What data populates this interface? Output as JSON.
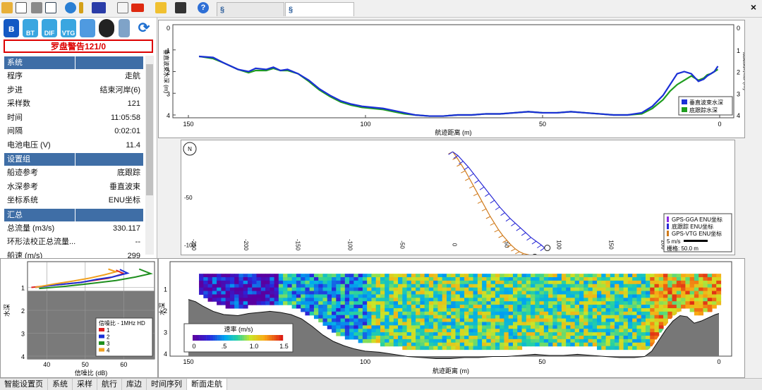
{
  "toolbar": {
    "icons": [
      "folder-open-icon",
      "window-icon",
      "tools-icon",
      "layout-icon",
      "globe-icon",
      "pin-icon",
      "meter-icon",
      "notepad-icon",
      "flag-icon",
      "hand-icon",
      "camera-icon",
      "help-icon"
    ],
    "tabs": [
      {
        "label": "20190618110052",
        "active": false
      },
      {
        "label": "20190618110402",
        "active": true
      }
    ],
    "close_label": "×"
  },
  "left_panel": {
    "icons": [
      "bluetooth-icon",
      "BT",
      "DIF",
      "VTG",
      "ship-icon",
      "reel-icon",
      "battery-icon",
      "refresh-icon"
    ],
    "warning": "罗盘警告121/0",
    "sections": [
      {
        "title": "系统",
        "rows": [
          {
            "label": "程序",
            "value": "走航"
          },
          {
            "label": "步进",
            "value": "结束河岸(6)"
          },
          {
            "label": "采样数",
            "value": "121"
          },
          {
            "label": "时间",
            "value": "11:05:58"
          },
          {
            "label": "间隔",
            "value": "0:02:01"
          },
          {
            "label": "电池电压 (V)",
            "value": "11.4"
          }
        ]
      },
      {
        "title": "设置组",
        "rows": [
          {
            "label": "船迹参考",
            "value": "底跟踪"
          },
          {
            "label": "水深参考",
            "value": "垂直波束"
          },
          {
            "label": "坐标系统",
            "value": "ENU坐标"
          }
        ]
      },
      {
        "title": "汇总",
        "rows": [
          {
            "label": "总流量 (m3/s)",
            "value": "330.117"
          },
          {
            "label": "环形法校正总流量...",
            "value": "--"
          },
          {
            "label": "船速 (m/s)",
            "value": "299"
          }
        ]
      }
    ]
  },
  "bottom_tabs": [
    {
      "label": "智能设置页",
      "active": false
    },
    {
      "label": "系统",
      "active": false
    },
    {
      "label": "采样",
      "active": false
    },
    {
      "label": "航行",
      "active": false
    },
    {
      "label": "库边",
      "active": false
    },
    {
      "label": "时间序列",
      "active": false
    },
    {
      "label": "断面走航",
      "active": true
    }
  ],
  "chart_data": [
    {
      "type": "line",
      "title": "",
      "xlabel": "航迹距离 (m)",
      "ylabel": "垂直波束水深 (m)",
      "ylabel_right": "底跟踪水深 (m)",
      "xlim": [
        150,
        0
      ],
      "ylim": [
        4,
        0
      ],
      "x_ticks": [
        150,
        100,
        50,
        0
      ],
      "y_ticks": [
        1,
        2,
        3,
        4
      ],
      "legend": {
        "position": "bottom-right"
      },
      "series": [
        {
          "name": "垂直波束水深",
          "color": "#1a2fd6",
          "x": [
            147,
            143,
            140,
            136,
            133,
            131,
            128,
            126,
            124,
            122,
            119,
            116,
            113,
            110,
            107,
            104,
            101,
            98,
            95,
            92,
            89,
            86,
            82,
            78,
            74,
            70,
            66,
            62,
            58,
            54,
            50,
            46,
            42,
            38,
            34,
            30,
            26,
            22,
            19,
            16,
            14,
            12,
            10,
            8,
            6,
            4.5,
            3.5,
            2.5,
            1.5,
            0.5
          ],
          "y": [
            1.3,
            1.35,
            1.6,
            1.9,
            2.0,
            1.85,
            1.9,
            1.8,
            1.95,
            1.9,
            2.1,
            2.4,
            2.8,
            3.1,
            3.35,
            3.5,
            3.6,
            3.65,
            3.7,
            3.8,
            3.9,
            4.0,
            4.05,
            4.05,
            4.0,
            4.0,
            3.95,
            3.95,
            3.9,
            3.85,
            3.9,
            3.9,
            3.85,
            3.9,
            3.95,
            4.0,
            4.0,
            3.9,
            3.6,
            3.1,
            2.6,
            2.1,
            2.0,
            2.1,
            2.45,
            2.35,
            2.2,
            2.1,
            2.0,
            1.75
          ]
        },
        {
          "name": "底跟踪水深",
          "color": "#1f9d1f",
          "x": [
            147,
            143,
            140,
            136,
            133,
            131,
            128,
            126,
            124,
            122,
            119,
            116,
            113,
            110,
            107,
            104,
            101,
            98,
            95,
            92,
            89,
            86,
            82,
            78,
            74,
            70,
            66,
            62,
            58,
            54,
            50,
            46,
            42,
            38,
            34,
            30,
            26,
            22,
            19,
            16,
            14,
            12,
            10,
            8,
            6,
            4.5,
            3.5,
            2.5,
            1.5,
            0.5
          ],
          "y": [
            1.3,
            1.4,
            1.6,
            1.9,
            2.05,
            1.95,
            1.95,
            1.85,
            1.95,
            1.95,
            2.1,
            2.45,
            2.85,
            3.15,
            3.4,
            3.55,
            3.65,
            3.7,
            3.75,
            3.85,
            3.95,
            4.0,
            4.05,
            4.05,
            4.0,
            4.0,
            3.95,
            3.95,
            3.9,
            3.85,
            3.9,
            3.9,
            3.85,
            3.9,
            3.95,
            4.0,
            4.0,
            3.95,
            3.7,
            3.3,
            2.9,
            2.6,
            2.4,
            2.2,
            2.4,
            2.3,
            2.15,
            2.1,
            2.0,
            1.9
          ]
        }
      ]
    },
    {
      "type": "scatter",
      "title": "",
      "xlim": [
        -260,
        270
      ],
      "ylim": [
        -110,
        10
      ],
      "x_ticks": [
        -250,
        -200,
        -150,
        -100,
        -50,
        0,
        50,
        100,
        150,
        200,
        250
      ],
      "y_ticks": [
        -50,
        -100
      ],
      "legend": {
        "position": "bottom-right"
      },
      "compass_label": "N",
      "scale_label": "5 m/s",
      "grid_label": "栅格: 50.0 m",
      "series": [
        {
          "name": "GPS-GGA ENU坐标",
          "color": "#8a2be2"
        },
        {
          "name": "底跟踪 ENU坐标",
          "color": "#2a2ad6",
          "x": [
            0,
            5,
            10,
            15,
            20,
            25,
            30,
            35,
            40,
            45,
            50,
            55,
            60,
            65,
            70,
            75,
            80,
            85,
            88
          ],
          "y": [
            -2,
            -6,
            -12,
            -18,
            -25,
            -32,
            -39,
            -46,
            -53,
            -60,
            -66,
            -72,
            -77,
            -82,
            -87,
            -92,
            -96,
            -100,
            -103
          ]
        },
        {
          "name": "GPS-VTG ENU坐标",
          "color": "#d07a1a",
          "x": [
            0,
            4,
            8,
            12,
            16,
            20,
            24,
            28,
            32,
            36,
            40,
            44,
            48,
            52,
            56,
            60,
            64,
            68,
            72,
            76,
            80
          ],
          "y": [
            -2,
            -8,
            -15,
            -22,
            -30,
            -38,
            -46,
            -54,
            -62,
            -70,
            -77,
            -84,
            -90,
            -95,
            -100,
            -104,
            -107,
            -109,
            -110,
            -111,
            -111
          ]
        }
      ]
    },
    {
      "type": "heatmap",
      "title": "",
      "xlabel": "航迹距离 (m)",
      "ylabel": "水深",
      "xlim": [
        150,
        0
      ],
      "ylim": [
        4,
        0
      ],
      "x_ticks": [
        150,
        100,
        50,
        0
      ],
      "y_ticks": [
        1,
        2,
        3,
        4
      ],
      "colorbar": {
        "label": "速率 (m/s)",
        "min": 0,
        "max": 1.5,
        "ticks": [
          "0",
          ".5",
          "1.0",
          "1.5"
        ]
      },
      "bottom_profile": {
        "x": [
          150,
          148,
          146,
          143,
          140,
          136,
          133,
          130,
          127,
          124,
          121,
          118,
          115,
          112,
          109,
          106,
          103,
          100,
          96,
          92,
          88,
          84,
          80,
          76,
          72,
          68,
          64,
          60,
          56,
          52,
          48,
          44,
          40,
          36,
          32,
          28,
          24,
          21,
          19,
          17,
          15,
          13,
          11,
          9,
          7,
          5,
          3,
          1,
          0
        ],
        "y": [
          1.3,
          1.4,
          1.6,
          1.85,
          2.0,
          2.05,
          1.95,
          1.9,
          1.85,
          1.9,
          2.0,
          2.2,
          2.55,
          2.95,
          3.25,
          3.45,
          3.6,
          3.7,
          3.75,
          3.85,
          3.95,
          4.0,
          4.05,
          4.05,
          4.0,
          4.0,
          3.95,
          3.95,
          3.9,
          3.85,
          3.9,
          3.9,
          3.85,
          3.9,
          3.95,
          4.0,
          4.0,
          3.95,
          3.7,
          3.2,
          2.7,
          2.3,
          2.05,
          2.1,
          2.4,
          2.3,
          2.15,
          2.0,
          1.95
        ]
      }
    },
    {
      "type": "line",
      "title": "",
      "xlabel": "信噪比 (dB)",
      "ylabel": "水深",
      "xlim": [
        35,
        68
      ],
      "ylim": [
        4,
        0
      ],
      "x_ticks": [
        40,
        50,
        60
      ],
      "y_ticks": [
        1,
        2,
        3,
        4
      ],
      "legend": {
        "title": "信噪比 - 1MHz HD",
        "position": "bottom-right"
      },
      "series": [
        {
          "name": "1",
          "color": "#e02020",
          "x": [
            36,
            42,
            48,
            52,
            56,
            60,
            58
          ],
          "y": [
            1.0,
            0.9,
            0.8,
            0.7,
            0.6,
            0.4,
            0.25
          ]
        },
        {
          "name": "2",
          "color": "#1a2fd6",
          "x": [
            37,
            43,
            49,
            53,
            57,
            61,
            59
          ],
          "y": [
            1.0,
            0.88,
            0.78,
            0.65,
            0.55,
            0.38,
            0.22
          ]
        },
        {
          "name": "3",
          "color": "#1f8f1f",
          "x": [
            38,
            45,
            52,
            58,
            63,
            67,
            64
          ],
          "y": [
            1.05,
            0.95,
            0.82,
            0.7,
            0.55,
            0.4,
            0.2
          ]
        },
        {
          "name": "4",
          "color": "#f0a020",
          "x": [
            37,
            42,
            47,
            51,
            55,
            58,
            56
          ],
          "y": [
            1.0,
            0.85,
            0.72,
            0.6,
            0.45,
            0.32,
            0.2
          ]
        }
      ]
    }
  ]
}
